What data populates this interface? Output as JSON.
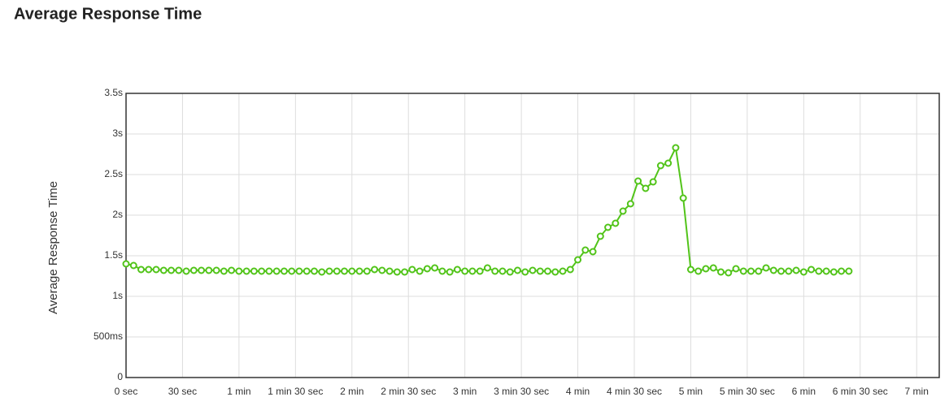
{
  "chart_data": {
    "type": "line",
    "title": "Average Response Time",
    "y_label": "Average Response Time",
    "x": [
      0,
      4,
      8,
      12,
      16,
      20,
      24,
      28,
      32,
      36,
      40,
      44,
      48,
      52,
      56,
      60,
      64,
      68,
      72,
      76,
      80,
      84,
      88,
      92,
      96,
      100,
      104,
      108,
      112,
      116,
      120,
      124,
      128,
      132,
      136,
      140,
      144,
      148,
      152,
      156,
      160,
      164,
      168,
      172,
      176,
      180,
      184,
      188,
      192,
      196,
      200,
      204,
      208,
      212,
      216,
      220,
      224,
      228,
      232,
      236,
      240,
      244,
      248,
      252,
      256,
      260,
      264,
      268,
      272,
      276,
      280,
      284,
      288,
      292,
      296,
      300,
      304,
      308,
      312,
      316,
      320,
      324,
      328,
      332,
      336,
      340,
      344,
      348,
      352,
      356,
      360,
      364,
      368,
      372,
      376,
      380,
      384
    ],
    "series": [
      {
        "name": "Average Response Time",
        "color": "#52c41a",
        "values": [
          1.4,
          1.38,
          1.33,
          1.33,
          1.33,
          1.32,
          1.32,
          1.32,
          1.31,
          1.32,
          1.32,
          1.32,
          1.32,
          1.31,
          1.32,
          1.31,
          1.31,
          1.31,
          1.31,
          1.31,
          1.31,
          1.31,
          1.31,
          1.31,
          1.31,
          1.31,
          1.3,
          1.31,
          1.31,
          1.31,
          1.31,
          1.31,
          1.31,
          1.33,
          1.32,
          1.31,
          1.3,
          1.3,
          1.33,
          1.31,
          1.34,
          1.35,
          1.31,
          1.3,
          1.33,
          1.31,
          1.31,
          1.31,
          1.35,
          1.31,
          1.31,
          1.3,
          1.32,
          1.3,
          1.32,
          1.31,
          1.31,
          1.3,
          1.31,
          1.33,
          1.45,
          1.57,
          1.55,
          1.74,
          1.85,
          1.9,
          2.05,
          2.14,
          2.42,
          2.33,
          2.41,
          2.61,
          2.64,
          2.83,
          2.21,
          1.33,
          1.31,
          1.34,
          1.35,
          1.3,
          1.29,
          1.34,
          1.31,
          1.31,
          1.31,
          1.35,
          1.32,
          1.31,
          1.31,
          1.32,
          1.3,
          1.33,
          1.31,
          1.31,
          1.3,
          1.31,
          1.31
        ]
      }
    ],
    "xlim": [
      0,
      432
    ],
    "xticks": [
      {
        "value": 0,
        "label": "0 sec"
      },
      {
        "value": 30,
        "label": "30 sec"
      },
      {
        "value": 60,
        "label": "1 min"
      },
      {
        "value": 90,
        "label": "1 min 30 sec"
      },
      {
        "value": 120,
        "label": "2 min"
      },
      {
        "value": 150,
        "label": "2 min 30 sec"
      },
      {
        "value": 180,
        "label": "3 min"
      },
      {
        "value": 210,
        "label": "3 min 30 sec"
      },
      {
        "value": 240,
        "label": "4 min"
      },
      {
        "value": 270,
        "label": "4 min 30 sec"
      },
      {
        "value": 300,
        "label": "5 min"
      },
      {
        "value": 330,
        "label": "5 min 30 sec"
      },
      {
        "value": 360,
        "label": "6 min"
      },
      {
        "value": 390,
        "label": "6 min 30 sec"
      },
      {
        "value": 420,
        "label": "7 min"
      }
    ],
    "ylim": [
      0,
      3.5
    ],
    "yticks": [
      0,
      {
        "value": 0.5,
        "label": "500ms"
      },
      {
        "value": 1,
        "label": "1s"
      },
      {
        "value": 1.5,
        "label": "1.5s"
      },
      {
        "value": 2,
        "label": "2s"
      },
      {
        "value": 2.5,
        "label": "2.5s"
      },
      {
        "value": 3,
        "label": "3s"
      },
      {
        "value": 3.5,
        "label": "3.5s"
      }
    ],
    "grid": true
  }
}
